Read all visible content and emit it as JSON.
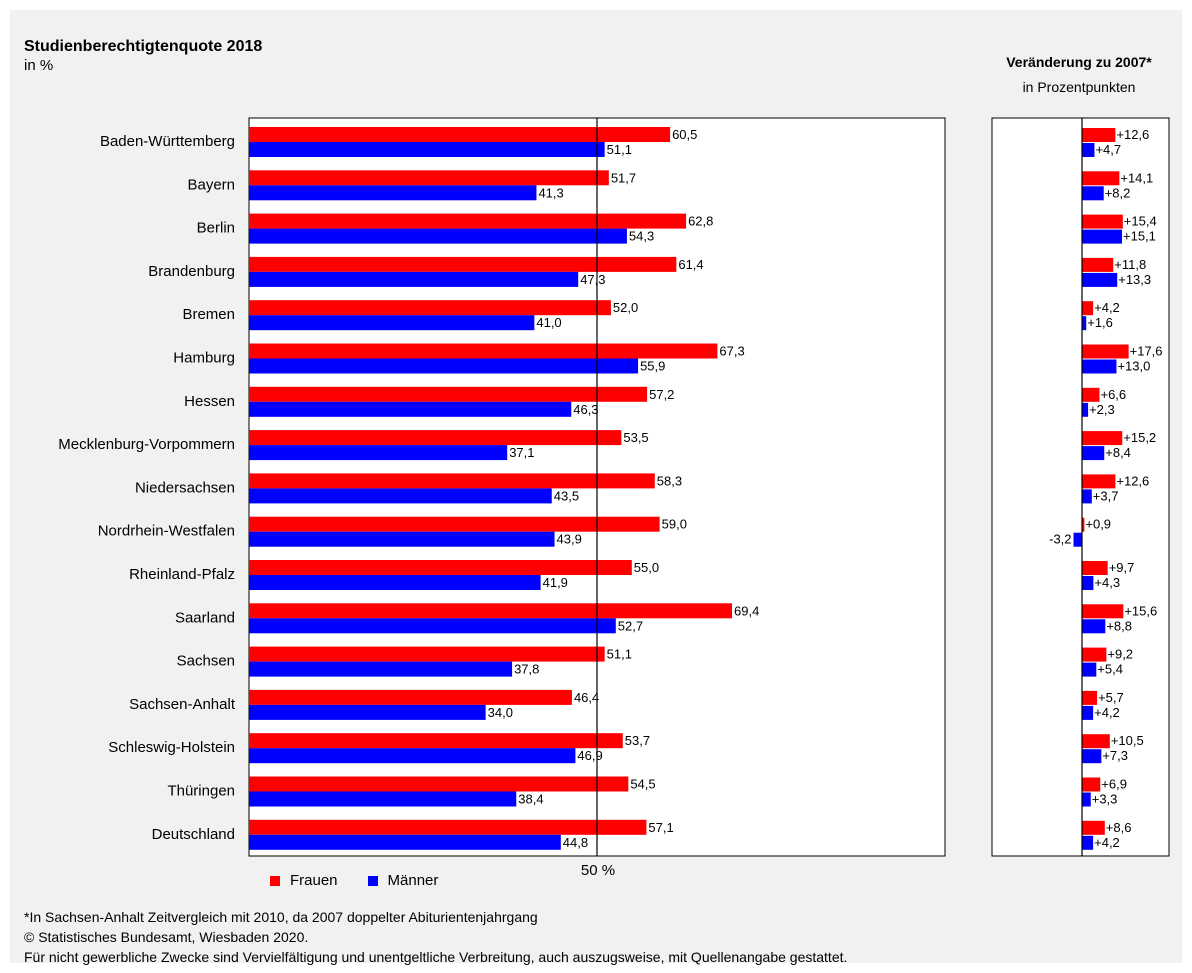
{
  "header": {
    "title": "Studienberechtigtenquote 2018",
    "subtitle": "in %",
    "right_title": "Veränderung zu 2007*",
    "right_subtitle": "in Prozentpunkten"
  },
  "colors": {
    "frauen": "#ff0000",
    "maenner": "#0000ff"
  },
  "legend": {
    "frauen_label": "Frauen",
    "maenner_label": "Männer"
  },
  "footnotes": [
    "*In Sachsen-Anhalt Zeitvergleich mit 2010, da 2007 doppelter Abiturientenjahrgang",
    "© Statistisches Bundesamt, Wiesbaden 2020.",
    "Für nicht gewerbliche Zwecke sind Vervielfältigung und unentgeltliche Verbreitung, auch auszugsweise, mit Quellenangabe gestattet."
  ],
  "chart_data": [
    {
      "type": "bar",
      "orientation": "horizontal",
      "title": "Studienberechtigtenquote 2018",
      "unit": "in %",
      "reference_line": 50,
      "reference_label": "50 %",
      "xlim": [
        0,
        100
      ],
      "categories": [
        "Baden-Württemberg",
        "Bayern",
        "Berlin",
        "Brandenburg",
        "Bremen",
        "Hamburg",
        "Hessen",
        "Mecklenburg-Vorpommern",
        "Niedersachsen",
        "Nordrhein-Westfalen",
        "Rheinland-Pfalz",
        "Saarland",
        "Sachsen",
        "Sachsen-Anhalt",
        "Schleswig-Holstein",
        "Thüringen",
        "Deutschland"
      ],
      "series": [
        {
          "name": "Frauen",
          "values": [
            60.5,
            51.7,
            62.8,
            61.4,
            52.0,
            67.3,
            57.2,
            53.5,
            58.3,
            59.0,
            55.0,
            69.4,
            51.1,
            46.4,
            53.7,
            54.5,
            57.1
          ],
          "labels": [
            "60,5",
            "51,7",
            "62,8",
            "61,4",
            "52,0",
            "67,3",
            "57,2",
            "53,5",
            "58,3",
            "59,0",
            "55,0",
            "69,4",
            "51,1",
            "46,4",
            "53,7",
            "54,5",
            "57,1"
          ]
        },
        {
          "name": "Männer",
          "values": [
            51.1,
            41.3,
            54.3,
            47.3,
            41.0,
            55.9,
            46.3,
            37.1,
            43.5,
            43.9,
            41.9,
            52.7,
            37.8,
            34.0,
            46.9,
            38.4,
            44.8
          ],
          "labels": [
            "51,1",
            "41,3",
            "54,3",
            "47,3",
            "41,0",
            "55,9",
            "46,3",
            "37,1",
            "43,5",
            "43,9",
            "41,9",
            "52,7",
            "37,8",
            "34,0",
            "46,9",
            "38,4",
            "44,8"
          ]
        }
      ]
    },
    {
      "type": "bar",
      "orientation": "horizontal",
      "title": "Veränderung zu 2007*",
      "unit": "in Prozentpunkten",
      "categories": [
        "Baden-Württemberg",
        "Bayern",
        "Berlin",
        "Brandenburg",
        "Bremen",
        "Hamburg",
        "Hessen",
        "Mecklenburg-Vorpommern",
        "Niedersachsen",
        "Nordrhein-Westfalen",
        "Rheinland-Pfalz",
        "Saarland",
        "Sachsen",
        "Sachsen-Anhalt",
        "Schleswig-Holstein",
        "Thüringen",
        "Deutschland"
      ],
      "series": [
        {
          "name": "Frauen",
          "values": [
            12.6,
            14.1,
            15.4,
            11.8,
            4.2,
            17.6,
            6.6,
            15.2,
            12.6,
            0.9,
            9.7,
            15.6,
            9.2,
            5.7,
            10.5,
            6.9,
            8.6
          ],
          "labels": [
            "+12,6",
            "+14,1",
            "+15,4",
            "+11,8",
            "+4,2",
            "+17,6",
            "+6,6",
            "+15,2",
            "+12,6",
            "+0,9",
            "+9,7",
            "+15,6",
            "+9,2",
            "+5,7",
            "+10,5",
            "+6,9",
            "+8,6"
          ]
        },
        {
          "name": "Männer",
          "values": [
            4.7,
            8.2,
            15.1,
            13.3,
            1.6,
            13.0,
            2.3,
            8.4,
            3.7,
            -3.2,
            4.3,
            8.8,
            5.4,
            4.2,
            7.3,
            3.3,
            4.2
          ],
          "labels": [
            "+4,7",
            "+8,2",
            "+15,1",
            "+13,3",
            "+1,6",
            "+13,0",
            "+2,3",
            "+8,4",
            "+3,7",
            "-3,2",
            "+4,3",
            "+8,8",
            "+5,4",
            "+4,2",
            "+7,3",
            "+3,3",
            "+4,2"
          ]
        }
      ]
    }
  ]
}
